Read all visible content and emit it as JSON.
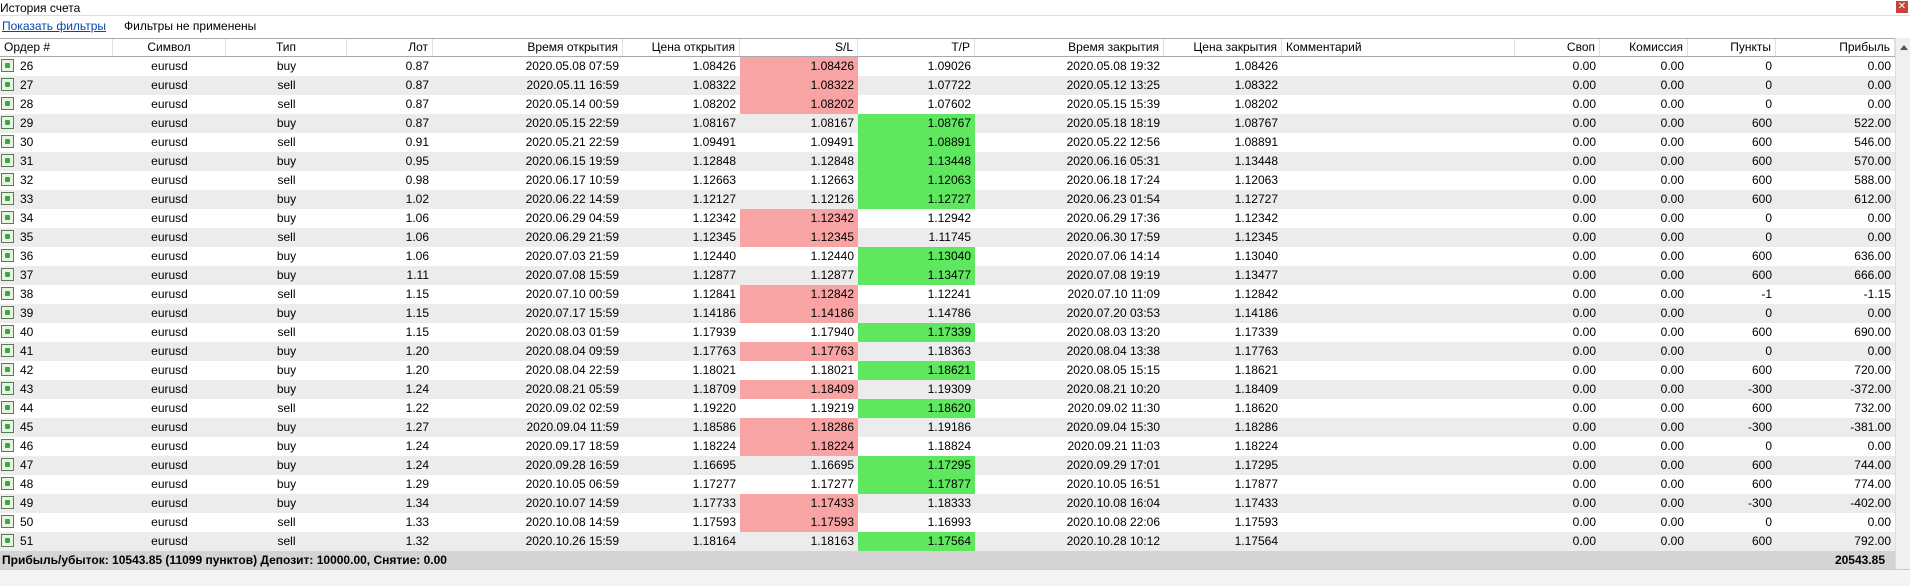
{
  "window": {
    "title": "История счета"
  },
  "toolbar": {
    "link": "Показать фильтры",
    "status": "Фильтры не применены"
  },
  "table": {
    "columns": [
      "Ордер #",
      "Символ",
      "Тип",
      "Лот",
      "Время открытия",
      "Цена открытия",
      "S/L",
      "T/P",
      "Время закрытия",
      "Цена закрытия",
      "Комментарий",
      "Своп",
      "Комиссия",
      "Пункты",
      "Прибыль"
    ],
    "rows": [
      [
        "26",
        "eurusd",
        "buy",
        "0.87",
        "2020.05.08 07:59",
        "1.08426",
        "1.08426",
        "1.09026",
        "2020.05.08 19:32",
        "1.08426",
        "",
        "0.00",
        "0.00",
        "0",
        "0.00"
      ],
      [
        "27",
        "eurusd",
        "sell",
        "0.87",
        "2020.05.11 16:59",
        "1.08322",
        "1.08322",
        "1.07722",
        "2020.05.12 13:25",
        "1.08322",
        "",
        "0.00",
        "0.00",
        "0",
        "0.00"
      ],
      [
        "28",
        "eurusd",
        "sell",
        "0.87",
        "2020.05.14 00:59",
        "1.08202",
        "1.08202",
        "1.07602",
        "2020.05.15 15:39",
        "1.08202",
        "",
        "0.00",
        "0.00",
        "0",
        "0.00"
      ],
      [
        "29",
        "eurusd",
        "buy",
        "0.87",
        "2020.05.15 22:59",
        "1.08167",
        "1.08167",
        "1.08767",
        "2020.05.18 18:19",
        "1.08767",
        "",
        "0.00",
        "0.00",
        "600",
        "522.00"
      ],
      [
        "30",
        "eurusd",
        "sell",
        "0.91",
        "2020.05.21 22:59",
        "1.09491",
        "1.09491",
        "1.08891",
        "2020.05.22 12:56",
        "1.08891",
        "",
        "0.00",
        "0.00",
        "600",
        "546.00"
      ],
      [
        "31",
        "eurusd",
        "buy",
        "0.95",
        "2020.06.15 19:59",
        "1.12848",
        "1.12848",
        "1.13448",
        "2020.06.16 05:31",
        "1.13448",
        "",
        "0.00",
        "0.00",
        "600",
        "570.00"
      ],
      [
        "32",
        "eurusd",
        "sell",
        "0.98",
        "2020.06.17 10:59",
        "1.12663",
        "1.12663",
        "1.12063",
        "2020.06.18 17:24",
        "1.12063",
        "",
        "0.00",
        "0.00",
        "600",
        "588.00"
      ],
      [
        "33",
        "eurusd",
        "buy",
        "1.02",
        "2020.06.22 14:59",
        "1.12127",
        "1.12126",
        "1.12727",
        "2020.06.23 01:54",
        "1.12727",
        "",
        "0.00",
        "0.00",
        "600",
        "612.00"
      ],
      [
        "34",
        "eurusd",
        "buy",
        "1.06",
        "2020.06.29 04:59",
        "1.12342",
        "1.12342",
        "1.12942",
        "2020.06.29 17:36",
        "1.12342",
        "",
        "0.00",
        "0.00",
        "0",
        "0.00"
      ],
      [
        "35",
        "eurusd",
        "sell",
        "1.06",
        "2020.06.29 21:59",
        "1.12345",
        "1.12345",
        "1.11745",
        "2020.06.30 17:59",
        "1.12345",
        "",
        "0.00",
        "0.00",
        "0",
        "0.00"
      ],
      [
        "36",
        "eurusd",
        "buy",
        "1.06",
        "2020.07.03 21:59",
        "1.12440",
        "1.12440",
        "1.13040",
        "2020.07.06 14:14",
        "1.13040",
        "",
        "0.00",
        "0.00",
        "600",
        "636.00"
      ],
      [
        "37",
        "eurusd",
        "buy",
        "1.11",
        "2020.07.08 15:59",
        "1.12877",
        "1.12877",
        "1.13477",
        "2020.07.08 19:19",
        "1.13477",
        "",
        "0.00",
        "0.00",
        "600",
        "666.00"
      ],
      [
        "38",
        "eurusd",
        "sell",
        "1.15",
        "2020.07.10 00:59",
        "1.12841",
        "1.12842",
        "1.12241",
        "2020.07.10 11:09",
        "1.12842",
        "",
        "0.00",
        "0.00",
        "-1",
        "-1.15"
      ],
      [
        "39",
        "eurusd",
        "buy",
        "1.15",
        "2020.07.17 15:59",
        "1.14186",
        "1.14186",
        "1.14786",
        "2020.07.20 03:53",
        "1.14186",
        "",
        "0.00",
        "0.00",
        "0",
        "0.00"
      ],
      [
        "40",
        "eurusd",
        "sell",
        "1.15",
        "2020.08.03 01:59",
        "1.17939",
        "1.17940",
        "1.17339",
        "2020.08.03 13:20",
        "1.17339",
        "",
        "0.00",
        "0.00",
        "600",
        "690.00"
      ],
      [
        "41",
        "eurusd",
        "buy",
        "1.20",
        "2020.08.04 09:59",
        "1.17763",
        "1.17763",
        "1.18363",
        "2020.08.04 13:38",
        "1.17763",
        "",
        "0.00",
        "0.00",
        "0",
        "0.00"
      ],
      [
        "42",
        "eurusd",
        "buy",
        "1.20",
        "2020.08.04 22:59",
        "1.18021",
        "1.18021",
        "1.18621",
        "2020.08.05 15:15",
        "1.18621",
        "",
        "0.00",
        "0.00",
        "600",
        "720.00"
      ],
      [
        "43",
        "eurusd",
        "buy",
        "1.24",
        "2020.08.21 05:59",
        "1.18709",
        "1.18409",
        "1.19309",
        "2020.08.21 10:20",
        "1.18409",
        "",
        "0.00",
        "0.00",
        "-300",
        "-372.00"
      ],
      [
        "44",
        "eurusd",
        "sell",
        "1.22",
        "2020.09.02 02:59",
        "1.19220",
        "1.19219",
        "1.18620",
        "2020.09.02 11:30",
        "1.18620",
        "",
        "0.00",
        "0.00",
        "600",
        "732.00"
      ],
      [
        "45",
        "eurusd",
        "buy",
        "1.27",
        "2020.09.04 11:59",
        "1.18586",
        "1.18286",
        "1.19186",
        "2020.09.04 15:30",
        "1.18286",
        "",
        "0.00",
        "0.00",
        "-300",
        "-381.00"
      ],
      [
        "46",
        "eurusd",
        "buy",
        "1.24",
        "2020.09.17 18:59",
        "1.18224",
        "1.18224",
        "1.18824",
        "2020.09.21 11:03",
        "1.18224",
        "",
        "0.00",
        "0.00",
        "0",
        "0.00"
      ],
      [
        "47",
        "eurusd",
        "buy",
        "1.24",
        "2020.09.28 16:59",
        "1.16695",
        "1.16695",
        "1.17295",
        "2020.09.29 17:01",
        "1.17295",
        "",
        "0.00",
        "0.00",
        "600",
        "744.00"
      ],
      [
        "48",
        "eurusd",
        "buy",
        "1.29",
        "2020.10.05 06:59",
        "1.17277",
        "1.17277",
        "1.17877",
        "2020.10.05 16:51",
        "1.17877",
        "",
        "0.00",
        "0.00",
        "600",
        "774.00"
      ],
      [
        "49",
        "eurusd",
        "buy",
        "1.34",
        "2020.10.07 14:59",
        "1.17733",
        "1.17433",
        "1.18333",
        "2020.10.08 16:04",
        "1.17433",
        "",
        "0.00",
        "0.00",
        "-300",
        "-402.00"
      ],
      [
        "50",
        "eurusd",
        "sell",
        "1.33",
        "2020.10.08 14:59",
        "1.17593",
        "1.17593",
        "1.16993",
        "2020.10.08 22:06",
        "1.17593",
        "",
        "0.00",
        "0.00",
        "0",
        "0.00"
      ],
      [
        "51",
        "eurusd",
        "sell",
        "1.32",
        "2020.10.26 15:59",
        "1.18164",
        "1.18163",
        "1.17564",
        "2020.10.28 10:12",
        "1.17564",
        "",
        "0.00",
        "0.00",
        "600",
        "792.00"
      ]
    ],
    "footer": {
      "summary": "Прибыль/убыток: 10543.85 (11099 пунктов) Депозит: 10000.00, Снятие: 0.00",
      "total": "20543.85"
    }
  }
}
